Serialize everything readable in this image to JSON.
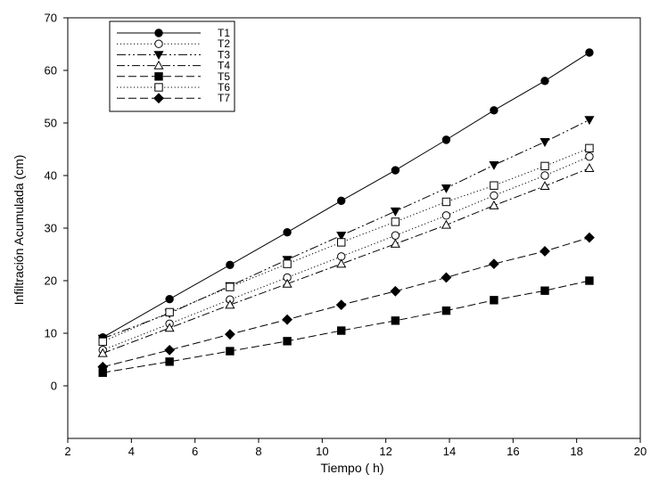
{
  "chart_data": {
    "type": "line",
    "title": "",
    "xlabel": "Tiempo ( h)",
    "ylabel": "Infiltración Acumulada (cm)",
    "xlim": [
      2,
      20
    ],
    "ylim": [
      -10,
      70
    ],
    "x_ticks": [
      2,
      4,
      6,
      8,
      10,
      12,
      14,
      16,
      18,
      20
    ],
    "y_ticks": [
      0,
      10,
      20,
      30,
      40,
      50,
      60,
      70
    ],
    "grid": false,
    "legend_position": "top-left",
    "x": [
      3.1,
      5.2,
      7.1,
      8.9,
      10.6,
      12.3,
      13.9,
      15.4,
      17.0,
      18.4
    ],
    "series": [
      {
        "name": "T1",
        "marker": "filled-circle",
        "line": "solid",
        "values": [
          9.2,
          16.5,
          23.0,
          29.2,
          35.2,
          41.0,
          46.8,
          52.4,
          58.0,
          63.4
        ]
      },
      {
        "name": "T2",
        "marker": "open-circle",
        "line": "dotted",
        "values": [
          6.8,
          11.8,
          16.4,
          20.6,
          24.6,
          28.6,
          32.4,
          36.2,
          40.0,
          43.6
        ]
      },
      {
        "name": "T3",
        "marker": "filled-triangle-down",
        "line": "dash-dot-dot",
        "values": [
          9.0,
          13.8,
          19.0,
          24.0,
          28.6,
          33.2,
          37.6,
          42.0,
          46.4,
          50.6
        ]
      },
      {
        "name": "T4",
        "marker": "open-triangle-up",
        "line": "dash-dot",
        "values": [
          6.2,
          11.0,
          15.4,
          19.4,
          23.2,
          27.0,
          30.6,
          34.3,
          38.0,
          41.4
        ]
      },
      {
        "name": "T5",
        "marker": "filled-square",
        "line": "dashed",
        "values": [
          2.5,
          4.6,
          6.6,
          8.5,
          10.5,
          12.4,
          14.3,
          16.3,
          18.1,
          20.0
        ]
      },
      {
        "name": "T6",
        "marker": "open-square",
        "line": "dotted",
        "values": [
          8.4,
          14.0,
          18.8,
          23.2,
          27.3,
          31.2,
          35.0,
          38.1,
          41.8,
          45.2
        ]
      },
      {
        "name": "T7",
        "marker": "filled-diamond",
        "line": "dashed",
        "values": [
          3.6,
          6.8,
          9.8,
          12.6,
          15.4,
          18.0,
          20.6,
          23.2,
          25.6,
          28.2
        ]
      }
    ]
  },
  "colors": {
    "line": "#000000",
    "background": "#ffffff"
  }
}
